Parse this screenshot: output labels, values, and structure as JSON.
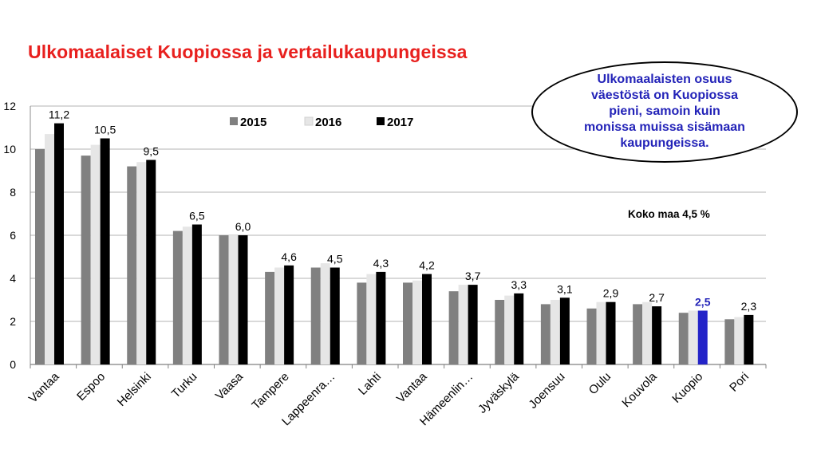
{
  "title": "Ulkomaalaiset Kuopiossa ja vertailukaupungeissa",
  "callout": {
    "lines": [
      "Ulkomaalaisten osuus",
      "väestöstä on Kuopiossa",
      "pieni, samoin kuin",
      "monissa muissa sisämaan",
      "kaupungeissa."
    ]
  },
  "note": "Koko maa 4,5 %",
  "chart_data": {
    "type": "bar",
    "categories": [
      "Vantaa",
      "Espoo",
      "Helsinki",
      "Turku",
      "Vaasa",
      "Tampere",
      "Lappeenra…",
      "Lahti",
      "Vantaa",
      "Hämeenlin…",
      "Jyväskylä",
      "Joensuu",
      "Oulu",
      "Kouvola",
      "Kuopio",
      "Pori"
    ],
    "series": [
      {
        "name": "2015",
        "color": "#808080",
        "values": [
          10.0,
          9.7,
          9.2,
          6.2,
          6.0,
          4.3,
          4.5,
          3.8,
          3.8,
          3.4,
          3.0,
          2.8,
          2.6,
          2.8,
          2.4,
          2.1
        ]
      },
      {
        "name": "2016",
        "color": "#e6e6e6",
        "values": [
          10.7,
          10.2,
          9.4,
          6.4,
          6.0,
          4.5,
          4.7,
          4.2,
          3.9,
          3.7,
          3.2,
          3.0,
          2.9,
          2.9,
          2.5,
          2.2
        ]
      },
      {
        "name": "2017",
        "color": "#000000",
        "values": [
          11.2,
          10.5,
          9.5,
          6.5,
          6.0,
          4.6,
          4.5,
          4.3,
          4.2,
          3.7,
          3.3,
          3.1,
          2.9,
          2.7,
          2.5,
          2.3
        ]
      }
    ],
    "data_labels": [
      "11,2",
      "10,5",
      "9,5",
      "6,5",
      "6,0",
      "4,6",
      "4,5",
      "4,3",
      "4,2",
      "3,7",
      "3,3",
      "3,1",
      "2,9",
      "2,7",
      "2,5",
      "2,3"
    ],
    "highlight": {
      "category": "Kuopio",
      "series": "2017",
      "color": "#2323c8",
      "label_color": "#2323b8"
    },
    "yticks": [
      0,
      2,
      4,
      6,
      8,
      10,
      12
    ],
    "ylim": [
      0,
      12
    ],
    "grid": true,
    "legend": "top-center"
  }
}
